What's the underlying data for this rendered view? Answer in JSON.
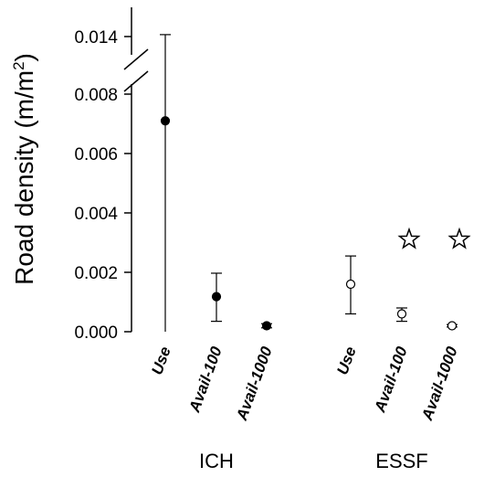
{
  "chart_data": {
    "type": "scatter",
    "ylabel": "Road density (m/m",
    "ylabel_sup": "2",
    "ylabel_close": ")",
    "yticks": [
      {
        "value": 0.0,
        "label": "0.000"
      },
      {
        "value": 0.002,
        "label": "0.002"
      },
      {
        "value": 0.004,
        "label": "0.004"
      },
      {
        "value": 0.006,
        "label": "0.006"
      },
      {
        "value": 0.008,
        "label": "0.008"
      },
      {
        "value": 0.014,
        "label": "0.014"
      }
    ],
    "axis_break": {
      "from": 0.008,
      "to": 0.014
    },
    "groups": [
      {
        "label": "ICH",
        "marker": "filled-circle",
        "points": [
          {
            "category": "Use",
            "mean": 0.0071,
            "lower": 0.0,
            "upper": 0.0142
          },
          {
            "category": "Avail-100",
            "mean": 0.00118,
            "lower": 0.00035,
            "upper": 0.00197
          },
          {
            "category": "Avail-1000",
            "mean": 0.0002,
            "lower": 0.00013,
            "upper": 0.00027
          }
        ]
      },
      {
        "label": "ESSF",
        "marker": "open-circle",
        "points": [
          {
            "category": "Use",
            "mean": 0.0016,
            "lower": 0.0006,
            "upper": 0.00255
          },
          {
            "category": "Avail-100",
            "mean": 0.0006,
            "lower": 0.00035,
            "upper": 0.0008,
            "significant": true
          },
          {
            "category": "Avail-1000",
            "mean": 0.0002,
            "lower": 0.00016,
            "upper": 0.00024,
            "significant": true
          }
        ]
      }
    ],
    "significance_marker": "star-icon",
    "grid": false
  }
}
